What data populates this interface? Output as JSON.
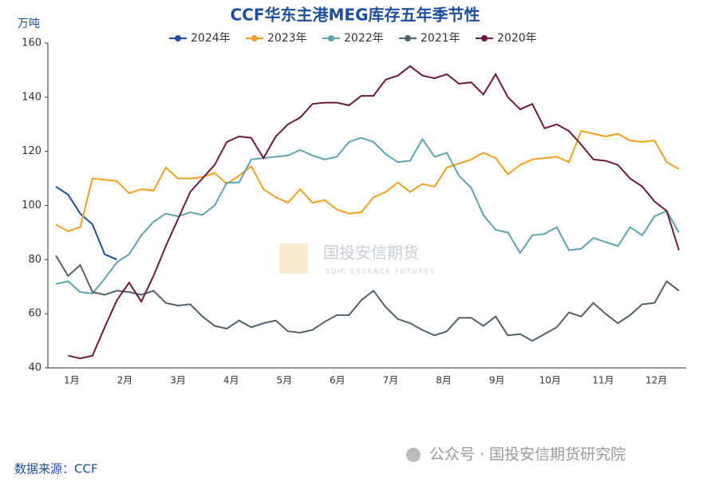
{
  "chart_data": {
    "type": "line",
    "title": "CCF华东主港MEG库存五年季节性",
    "y_unit": "万吨",
    "source": "数据来源：CCF",
    "watermark": "公众号 · 国投安信期货研究院",
    "logo_text": "国投安信期货",
    "logo_subtext": "SDIC ESSENCE FUTURES",
    "legend": "top",
    "x": [
      1,
      2,
      3,
      4,
      5,
      6,
      7,
      8,
      9,
      10,
      11,
      12,
      13,
      14,
      15,
      16,
      17,
      18,
      19,
      20,
      21,
      22,
      23,
      24,
      25,
      26,
      27,
      28,
      29,
      30,
      31,
      32,
      33,
      34,
      35,
      36,
      37,
      38,
      39,
      40,
      41,
      42,
      43,
      44,
      45,
      46,
      47,
      48,
      49,
      50,
      51,
      52
    ],
    "xlim": [
      0.35,
      52.6
    ],
    "xticks": [
      {
        "value": 2.3,
        "label": "1月"
      },
      {
        "value": 6.65,
        "label": "2月"
      },
      {
        "value": 11.0,
        "label": "3月"
      },
      {
        "value": 15.35,
        "label": "4月"
      },
      {
        "value": 19.7,
        "label": "5月"
      },
      {
        "value": 24.05,
        "label": "6月"
      },
      {
        "value": 28.4,
        "label": "7月"
      },
      {
        "value": 32.75,
        "label": "8月"
      },
      {
        "value": 37.1,
        "label": "9月"
      },
      {
        "value": 41.45,
        "label": "10月"
      },
      {
        "value": 45.8,
        "label": "11月"
      },
      {
        "value": 50.15,
        "label": "12月"
      }
    ],
    "ylim": [
      40,
      160
    ],
    "yticks": [
      40,
      60,
      80,
      100,
      120,
      140,
      160
    ],
    "series": [
      {
        "name": "2024年",
        "color": "#1f4e9e",
        "values": [
          107,
          104,
          97,
          93,
          82,
          80,
          null,
          null,
          null,
          null,
          null,
          null,
          null,
          null,
          null,
          null,
          null,
          null,
          null,
          null,
          null,
          null,
          null,
          null,
          null,
          null,
          null,
          null,
          null,
          null,
          null,
          null,
          null,
          null,
          null,
          null,
          null,
          null,
          null,
          null,
          null,
          null,
          null,
          null,
          null,
          null,
          null,
          null,
          null,
          null,
          null,
          null
        ]
      },
      {
        "name": "2023年",
        "color": "#f0a020",
        "values": [
          93,
          90.5,
          92,
          110,
          109.5,
          109,
          104.5,
          106,
          105.5,
          114,
          110,
          110,
          110.5,
          112,
          108,
          111,
          114.5,
          106,
          103,
          101,
          106,
          101,
          102,
          98.5,
          97,
          97.5,
          103,
          105,
          108.5,
          105,
          108,
          107,
          114,
          115.5,
          117,
          119.5,
          117.5,
          111.5,
          115,
          117,
          117.5,
          118,
          116,
          127.5,
          126.5,
          125.5,
          126.5,
          124,
          123.5,
          124,
          116,
          113.5
        ]
      },
      {
        "name": "2022年",
        "color": "#5fa3ad",
        "values": [
          71,
          72,
          68,
          67.5,
          73,
          79,
          82,
          89,
          94,
          97,
          96,
          97.5,
          96.5,
          100,
          108.5,
          108.5,
          117,
          117.5,
          118,
          118.5,
          120.5,
          118.5,
          117,
          118,
          123.5,
          125,
          123.5,
          119,
          116,
          116.5,
          124.5,
          118,
          119.5,
          111,
          106.5,
          96.5,
          91,
          90,
          82.5,
          89,
          89.5,
          92,
          83.5,
          84,
          88,
          86.5,
          85,
          92,
          89,
          96,
          98,
          90
        ]
      },
      {
        "name": "2021年",
        "color": "#555f6b",
        "values": [
          81.5,
          74,
          78,
          68,
          67,
          68.5,
          68,
          67,
          68.5,
          64,
          63,
          63.5,
          59,
          55.5,
          54.5,
          57.5,
          55,
          56.5,
          57.5,
          53.5,
          53,
          54,
          57,
          59.5,
          59.5,
          65,
          68.5,
          62.5,
          58,
          56.5,
          54,
          52,
          53.5,
          58.5,
          58.5,
          55.5,
          59,
          52,
          52.5,
          50,
          52.5,
          55,
          60.5,
          59,
          64,
          60,
          56.5,
          59.5,
          63.5,
          64,
          72,
          68.5
        ]
      },
      {
        "name": "2020年",
        "color": "#6b1a3f",
        "values": [
          null,
          44.5,
          43.5,
          44.5,
          55,
          65,
          71.5,
          64.5,
          74,
          85,
          95,
          105,
          110,
          115,
          123.5,
          125.5,
          125,
          117.5,
          125.5,
          130,
          132.5,
          137.5,
          138,
          138,
          137,
          140.5,
          140.5,
          146.5,
          148,
          151.5,
          148,
          147,
          148.5,
          145,
          145.5,
          141,
          148.5,
          140,
          135.5,
          137.5,
          128.5,
          130,
          127.5,
          122.5,
          117,
          116.5,
          115,
          110,
          107,
          101.5,
          98,
          83.5
        ]
      }
    ]
  }
}
